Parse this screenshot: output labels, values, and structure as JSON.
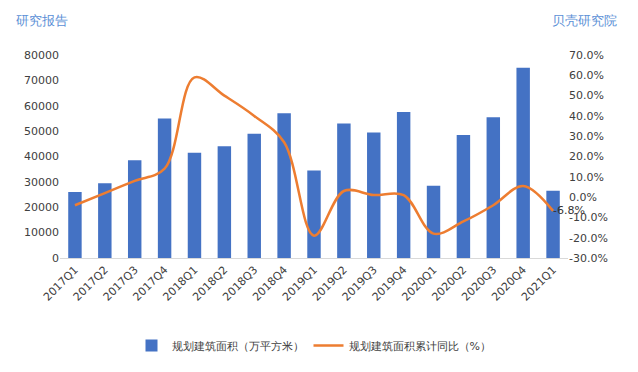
{
  "header": {
    "left": "研究报告",
    "right": "贝壳研究院"
  },
  "chart_data": {
    "type": "bar",
    "categories": [
      "2017Q1",
      "2017Q2",
      "2017Q3",
      "2017Q4",
      "2018Q1",
      "2018Q2",
      "2018Q3",
      "2018Q4",
      "2019Q1",
      "2019Q2",
      "2019Q3",
      "2019Q4",
      "2020Q1",
      "2020Q2",
      "2020Q3",
      "2020Q4",
      "2021Q1"
    ],
    "series": [
      {
        "name": "规划建筑面积（万平方米）",
        "type": "bar",
        "color": "#4472c4",
        "values": [
          26000,
          29500,
          38500,
          55000,
          41500,
          44000,
          49000,
          57000,
          34500,
          53000,
          49500,
          57500,
          28500,
          48500,
          55500,
          75000,
          26500
        ]
      },
      {
        "name": "规划建筑面积累计同比（%）",
        "type": "line",
        "axis": "y2",
        "color": "#ed7d31",
        "line_style": "smooth",
        "values": [
          -4,
          2,
          8,
          14,
          59,
          50,
          40,
          27,
          -19,
          3,
          1,
          1,
          -18,
          -12,
          -4,
          5.5,
          -6.8
        ],
        "value_labels": [
          null,
          null,
          null,
          null,
          null,
          null,
          null,
          null,
          null,
          null,
          null,
          null,
          null,
          null,
          null,
          null,
          "-6.8%"
        ]
      }
    ],
    "ylim": [
      0,
      80000
    ],
    "yticks": [
      0,
      10000,
      20000,
      30000,
      40000,
      50000,
      60000,
      70000,
      80000
    ],
    "y2lim": [
      -30,
      70
    ],
    "y2ticks": [
      {
        "value": -30,
        "label": "-30.0%"
      },
      {
        "value": -20,
        "label": "-20.0%"
      },
      {
        "value": -10,
        "label": "-10.0%"
      },
      {
        "value": 0,
        "label": "0.0%"
      },
      {
        "value": 10,
        "label": "10.0%"
      },
      {
        "value": 20,
        "label": "20.0%"
      },
      {
        "value": 30,
        "label": "30.0%"
      },
      {
        "value": 40,
        "label": "40.0%"
      },
      {
        "value": 50,
        "label": "50.0%"
      },
      {
        "value": 60,
        "label": "60.0%"
      },
      {
        "value": 70,
        "label": "70.0%"
      }
    ],
    "grid": false,
    "legend": "bottom"
  }
}
